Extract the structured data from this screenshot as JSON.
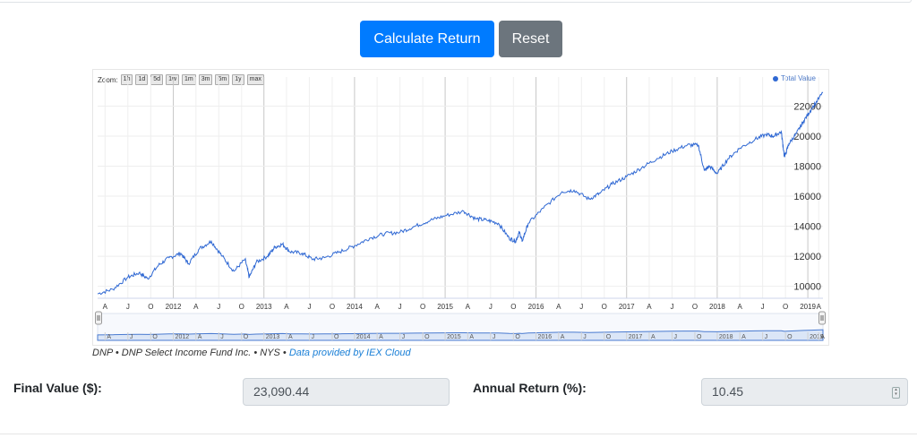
{
  "buttons": {
    "calculate": "Calculate Return",
    "reset": "Reset"
  },
  "chart_data": {
    "type": "line",
    "zoom_label": "Zoom:",
    "zoom_options": [
      "1h",
      "1d",
      "5d",
      "1w",
      "1m",
      "3m",
      "6m",
      "1y",
      "max"
    ],
    "series": [
      {
        "name": "Total Value",
        "color": "#2f68d3"
      }
    ],
    "y_ticks": [
      10000,
      12000,
      14000,
      16000,
      18000,
      20000,
      22000
    ],
    "ylim": [
      9200,
      23100
    ],
    "x_start": "2011-06-01",
    "x_end": "2019-06-01",
    "x_tick_labels": [
      {
        "date": "2011-07-01",
        "label": "A"
      },
      {
        "date": "2011-10-01",
        "label": "J"
      },
      {
        "date": "2012-01-01",
        "label": "O"
      },
      {
        "date": "2012-04-01",
        "label": "2012"
      },
      {
        "date": "2012-07-01",
        "label": "A"
      },
      {
        "date": "2012-10-01",
        "label": "J"
      },
      {
        "date": "2013-01-01",
        "label": "O"
      },
      {
        "date": "2013-04-01",
        "label": "2013"
      },
      {
        "date": "2013-07-01",
        "label": "A"
      },
      {
        "date": "2013-10-01",
        "label": "J"
      },
      {
        "date": "2014-01-01",
        "label": "O"
      },
      {
        "date": "2014-04-01",
        "label": "2014"
      },
      {
        "date": "2014-07-01",
        "label": "A"
      },
      {
        "date": "2014-10-01",
        "label": "J"
      },
      {
        "date": "2015-01-01",
        "label": "O"
      },
      {
        "date": "2015-04-01",
        "label": "2015"
      },
      {
        "date": "2015-07-01",
        "label": "A"
      },
      {
        "date": "2015-10-01",
        "label": "J"
      },
      {
        "date": "2016-01-01",
        "label": "O"
      },
      {
        "date": "2016-04-01",
        "label": "2016"
      },
      {
        "date": "2016-07-01",
        "label": "A"
      },
      {
        "date": "2016-10-01",
        "label": "J"
      },
      {
        "date": "2017-01-01",
        "label": "O"
      },
      {
        "date": "2017-04-01",
        "label": "2017"
      },
      {
        "date": "2017-07-01",
        "label": "A"
      },
      {
        "date": "2017-10-01",
        "label": "J"
      },
      {
        "date": "2018-01-01",
        "label": "O"
      },
      {
        "date": "2018-04-01",
        "label": "2018"
      },
      {
        "date": "2018-07-01",
        "label": "A"
      },
      {
        "date": "2018-10-01",
        "label": "J"
      },
      {
        "date": "2019-01-01",
        "label": "O"
      },
      {
        "date": "2019-04-01",
        "label": "2019"
      },
      {
        "date": "2019-05-15",
        "label": "A"
      }
    ],
    "points": [
      [
        "2011-06-01",
        9500
      ],
      [
        "2011-08-01",
        9800
      ],
      [
        "2011-10-01",
        10600
      ],
      [
        "2011-11-15",
        10900
      ],
      [
        "2011-12-20",
        10500
      ],
      [
        "2012-02-01",
        11400
      ],
      [
        "2012-03-15",
        11900
      ],
      [
        "2012-05-01",
        12200
      ],
      [
        "2012-06-01",
        11500
      ],
      [
        "2012-07-15",
        12500
      ],
      [
        "2012-09-01",
        13000
      ],
      [
        "2012-10-15",
        12000
      ],
      [
        "2012-12-01",
        11000
      ],
      [
        "2013-01-15",
        11800
      ],
      [
        "2013-02-01",
        10600
      ],
      [
        "2013-03-01",
        11600
      ],
      [
        "2013-04-15",
        12000
      ],
      [
        "2013-05-15",
        12600
      ],
      [
        "2013-06-15",
        12800
      ],
      [
        "2013-07-15",
        12300
      ],
      [
        "2013-09-01",
        12200
      ],
      [
        "2013-10-15",
        11800
      ],
      [
        "2013-12-01",
        11900
      ],
      [
        "2014-02-01",
        12300
      ],
      [
        "2014-04-01",
        12700
      ],
      [
        "2014-06-01",
        13200
      ],
      [
        "2014-08-01",
        13500
      ],
      [
        "2014-10-01",
        13600
      ],
      [
        "2014-12-01",
        14000
      ],
      [
        "2015-02-01",
        14400
      ],
      [
        "2015-04-01",
        14700
      ],
      [
        "2015-06-15",
        15000
      ],
      [
        "2015-08-01",
        14500
      ],
      [
        "2015-09-15",
        14400
      ],
      [
        "2015-11-01",
        14200
      ],
      [
        "2015-12-15",
        13200
      ],
      [
        "2016-01-10",
        13000
      ],
      [
        "2016-01-25",
        13600
      ],
      [
        "2016-02-05",
        13000
      ],
      [
        "2016-03-01",
        14200
      ],
      [
        "2016-05-01",
        15200
      ],
      [
        "2016-07-15",
        16300
      ],
      [
        "2016-09-01",
        16400
      ],
      [
        "2016-11-01",
        15800
      ],
      [
        "2016-12-15",
        16200
      ],
      [
        "2017-02-01",
        16800
      ],
      [
        "2017-04-01",
        17300
      ],
      [
        "2017-06-01",
        17900
      ],
      [
        "2017-08-01",
        18500
      ],
      [
        "2017-10-01",
        19000
      ],
      [
        "2017-12-01",
        19400
      ],
      [
        "2018-01-15",
        19400
      ],
      [
        "2018-02-08",
        17700
      ],
      [
        "2018-03-01",
        18000
      ],
      [
        "2018-04-01",
        17500
      ],
      [
        "2018-05-15",
        18500
      ],
      [
        "2018-07-01",
        19200
      ],
      [
        "2018-09-01",
        19800
      ],
      [
        "2018-10-15",
        20100
      ],
      [
        "2018-11-15",
        20000
      ],
      [
        "2018-12-15",
        20300
      ],
      [
        "2018-12-28",
        18600
      ],
      [
        "2019-01-15",
        19500
      ],
      [
        "2019-02-15",
        20200
      ],
      [
        "2019-03-15",
        21000
      ],
      [
        "2019-04-15",
        21800
      ],
      [
        "2019-06-01",
        22900
      ]
    ]
  },
  "credit": {
    "text": "DNP • DNP Select Income Fund Inc. • NYS • ",
    "link": "Data provided by IEX Cloud"
  },
  "results": {
    "final_label": "Final Value ($):",
    "final_value": "23,090.44",
    "annual_label": "Annual Return (%):",
    "annual_value": "10.45"
  }
}
